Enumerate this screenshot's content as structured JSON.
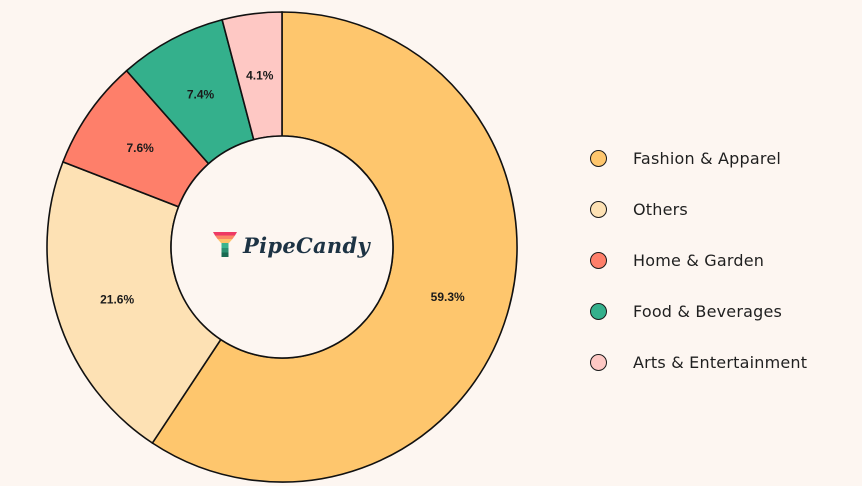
{
  "chart_data": {
    "type": "pie",
    "subtype": "donut",
    "title": "",
    "categories": [
      "Fashion & Apparel",
      "Others",
      "Home & Garden",
      "Food & Beverages",
      "Arts & Entertainment"
    ],
    "values": [
      59.3,
      21.6,
      7.6,
      7.4,
      4.1
    ],
    "labels": [
      "59.3%",
      "21.6%",
      "7.6%",
      "7.4%",
      "4.1%"
    ],
    "colors": [
      "#fec66d",
      "#fde1b4",
      "#fe7f6a",
      "#34b08c",
      "#fec8c4"
    ],
    "legend_position": "right",
    "start_angle": "12 o'clock, clockwise",
    "center_label": "PipeCandy"
  },
  "legend": {
    "items": [
      {
        "label": "Fashion & Apparel",
        "color": "#fec66d"
      },
      {
        "label": "Others",
        "color": "#fde1b4"
      },
      {
        "label": "Home & Garden",
        "color": "#fe7f6a"
      },
      {
        "label": "Food & Beverages",
        "color": "#34b08c"
      },
      {
        "label": "Arts & Entertainment",
        "color": "#fec8c4"
      }
    ]
  },
  "logo": {
    "text": "PipeCandy",
    "icon": "funnel-icon"
  }
}
